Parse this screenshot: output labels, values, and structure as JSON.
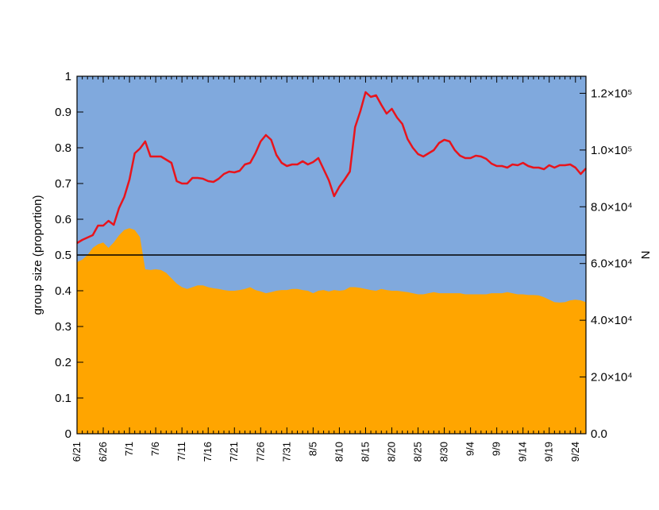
{
  "chart_data": {
    "type": "area-line",
    "y_label": "group size (proportion)",
    "y2_label": "N",
    "categories": [
      "6/21",
      null,
      null,
      null,
      null,
      "6/26",
      null,
      null,
      null,
      null,
      "7/1",
      null,
      null,
      null,
      null,
      "7/6",
      null,
      null,
      null,
      null,
      "7/11",
      null,
      null,
      null,
      null,
      "7/16",
      null,
      null,
      null,
      null,
      "7/21",
      null,
      null,
      null,
      null,
      "7/26",
      null,
      null,
      null,
      null,
      "7/31",
      null,
      null,
      null,
      null,
      "8/5",
      null,
      null,
      null,
      null,
      "8/10",
      null,
      null,
      null,
      null,
      "8/15",
      null,
      null,
      null,
      null,
      "8/20",
      null,
      null,
      null,
      null,
      "8/25",
      null,
      null,
      null,
      null,
      "8/30",
      null,
      null,
      null,
      null,
      "9/4",
      null,
      null,
      null,
      null,
      "9/9",
      null,
      null,
      null,
      null,
      "9/14",
      null,
      null,
      null,
      null,
      "9/19",
      null,
      null,
      null,
      null,
      "9/24",
      null,
      null
    ],
    "series": [
      {
        "kind": "area",
        "color": "#ffa500",
        "upper_color": "#80a9dd",
        "values": [
          0.48,
          0.487,
          0.5,
          0.52,
          0.53,
          0.535,
          0.52,
          0.535,
          0.555,
          0.57,
          0.575,
          0.57,
          0.55,
          0.46,
          0.458,
          0.46,
          0.458,
          0.45,
          0.435,
          0.42,
          0.41,
          0.405,
          0.41,
          0.415,
          0.415,
          0.41,
          0.407,
          0.405,
          0.402,
          0.4,
          0.4,
          0.402,
          0.405,
          0.41,
          0.402,
          0.398,
          0.393,
          0.396,
          0.4,
          0.402,
          0.402,
          0.405,
          0.405,
          0.402,
          0.4,
          0.393,
          0.4,
          0.402,
          0.398,
          0.402,
          0.4,
          0.402,
          0.41,
          0.41,
          0.408,
          0.405,
          0.402,
          0.4,
          0.405,
          0.402,
          0.4,
          0.4,
          0.398,
          0.396,
          0.393,
          0.39,
          0.39,
          0.393,
          0.396,
          0.393,
          0.393,
          0.393,
          0.393,
          0.393,
          0.39,
          0.39,
          0.39,
          0.39,
          0.39,
          0.393,
          0.393,
          0.393,
          0.396,
          0.393,
          0.39,
          0.39,
          0.388,
          0.388,
          0.387,
          0.382,
          0.375,
          0.368,
          0.367,
          0.368,
          0.373,
          0.375,
          0.373,
          0.368
        ]
      },
      {
        "kind": "line",
        "axis": "y2",
        "color": "#e8141c",
        "values": [
          67200,
          68320,
          69160,
          70000,
          73360,
          73360,
          75040,
          73640,
          79520,
          83440,
          89600,
          98840,
          100520,
          103040,
          97720,
          97720,
          97720,
          96600,
          95480,
          89040,
          88200,
          88200,
          90160,
          90160,
          89880,
          89040,
          88760,
          89880,
          91560,
          92400,
          92120,
          92680,
          94920,
          95480,
          98840,
          103040,
          105280,
          103600,
          98280,
          95480,
          94360,
          94920,
          94920,
          96040,
          94920,
          95760,
          97160,
          93240,
          89320,
          83720,
          87080,
          89600,
          92400,
          108080,
          113680,
          120400,
          118720,
          119280,
          115920,
          112840,
          114520,
          111440,
          109200,
          103880,
          100800,
          98560,
          97720,
          98840,
          99960,
          102480,
          103600,
          103040,
          99960,
          98000,
          97160,
          97160,
          98000,
          97720,
          96880,
          95200,
          94360,
          94360,
          93800,
          94920,
          94640,
          95480,
          94360,
          93800,
          93800,
          93240,
          94640,
          93800,
          94640,
          94640,
          94920,
          93800,
          91560,
          93520
        ]
      }
    ],
    "ylim": [
      0,
      1
    ],
    "yticks": [
      0,
      0.1,
      0.2,
      0.3,
      0.4,
      0.5,
      0.6,
      0.7,
      0.8,
      0.9,
      1
    ],
    "y2lim": [
      0,
      126000
    ],
    "y2ticks": [
      {
        "value": 0,
        "label": "0.0"
      },
      {
        "value": 20000,
        "label": "2.0×10⁴"
      },
      {
        "value": 40000,
        "label": "4.0×10⁴"
      },
      {
        "value": 60000,
        "label": "6.0×10⁴"
      },
      {
        "value": 80000,
        "label": "8.0×10⁴"
      },
      {
        "value": 100000,
        "label": "1.0×10⁵"
      },
      {
        "value": 120000,
        "label": "1.2×10⁵"
      }
    ],
    "hline": 0.5
  }
}
